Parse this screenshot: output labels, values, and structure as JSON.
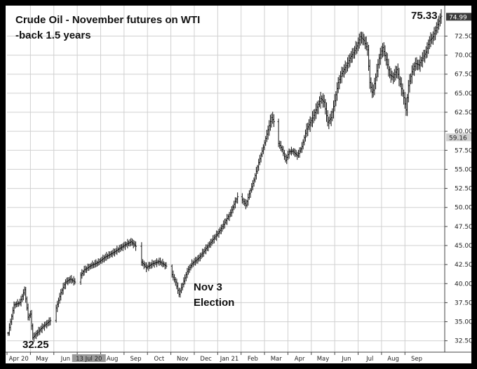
{
  "chart_data": {
    "type": "ohlc",
    "title_lines": [
      "Crude Oil - November futures on WTI",
      "-back 1.5 years"
    ],
    "ylim": [
      31.0,
      76.5
    ],
    "y_ticks": [
      "32.50",
      "35.00",
      "37.50",
      "40.00",
      "42.50",
      "45.00",
      "47.50",
      "50.00",
      "52.50",
      "55.00",
      "57.50",
      "60.00",
      "62.50",
      "65.00",
      "67.50",
      "70.00",
      "72.50"
    ],
    "x_ticks": [
      "Apr 20",
      "May",
      "Jun",
      "13 Jul 20",
      "Aug",
      "Sep",
      "Oct",
      "Nov",
      "Dec",
      "Jan 21",
      "Feb",
      "Mar",
      "Apr",
      "May",
      "Jun",
      "Jul",
      "Aug",
      "Sep"
    ],
    "x_tick_positions": [
      0.5,
      1.5,
      2.5,
      3.5,
      4.5,
      5.5,
      6.5,
      7.5,
      8.5,
      9.5,
      10.5,
      11.5,
      12.5,
      13.5,
      14.5,
      15.5,
      16.5,
      17.5
    ],
    "x_highlight_tick": "13 Jul 20",
    "x_range": [
      0,
      18.7
    ],
    "price_boxes": [
      {
        "label": "74.99",
        "value": 74.99,
        "style": "dark"
      },
      {
        "label": "59.16",
        "value": 59.16,
        "style": "light"
      }
    ],
    "series_path": [
      [
        0.05,
        33.5
      ],
      [
        0.3,
        37.2
      ],
      [
        0.55,
        37.5
      ],
      [
        0.75,
        39.2
      ],
      [
        0.9,
        35.6
      ],
      [
        1.0,
        36.0
      ],
      [
        1.1,
        32.9
      ],
      [
        1.3,
        33.6
      ],
      [
        1.55,
        34.4
      ],
      [
        1.75,
        34.9
      ],
      [
        1.9,
        35.3
      ],
      [
        2.1,
        36.8
      ],
      [
        2.3,
        38.8
      ],
      [
        2.5,
        40.2
      ],
      [
        2.7,
        40.6
      ],
      [
        2.9,
        40.2
      ],
      [
        3.1,
        40.9
      ],
      [
        3.3,
        41.8
      ],
      [
        3.6,
        42.4
      ],
      [
        3.9,
        42.8
      ],
      [
        4.2,
        43.5
      ],
      [
        4.5,
        44.0
      ],
      [
        4.8,
        44.6
      ],
      [
        5.05,
        45.1
      ],
      [
        5.3,
        45.5
      ],
      [
        5.5,
        44.9
      ],
      [
        5.7,
        43.0
      ],
      [
        5.95,
        42.1
      ],
      [
        6.2,
        42.6
      ],
      [
        6.5,
        42.9
      ],
      [
        6.8,
        42.3
      ],
      [
        7.0,
        41.5
      ],
      [
        7.2,
        40.2
      ],
      [
        7.35,
        38.6
      ],
      [
        7.5,
        39.9
      ],
      [
        7.7,
        41.6
      ],
      [
        7.9,
        42.6
      ],
      [
        8.2,
        43.4
      ],
      [
        8.5,
        44.6
      ],
      [
        8.8,
        45.8
      ],
      [
        9.1,
        47.0
      ],
      [
        9.35,
        48.3
      ],
      [
        9.55,
        49.3
      ],
      [
        9.75,
        50.8
      ],
      [
        9.9,
        51.7
      ],
      [
        10.05,
        51.0
      ],
      [
        10.2,
        50.3
      ],
      [
        10.35,
        51.8
      ],
      [
        10.55,
        53.6
      ],
      [
        10.75,
        55.9
      ],
      [
        10.95,
        57.9
      ],
      [
        11.15,
        60.2
      ],
      [
        11.3,
        61.8
      ],
      [
        11.45,
        61.0
      ],
      [
        11.6,
        58.4
      ],
      [
        11.75,
        57.6
      ],
      [
        11.9,
        56.2
      ],
      [
        12.05,
        57.3
      ],
      [
        12.2,
        57.4
      ],
      [
        12.4,
        56.8
      ],
      [
        12.6,
        58.0
      ],
      [
        12.8,
        60.3
      ],
      [
        13.0,
        61.4
      ],
      [
        13.2,
        62.8
      ],
      [
        13.4,
        64.3
      ],
      [
        13.55,
        63.8
      ],
      [
        13.7,
        61.2
      ],
      [
        13.85,
        61.8
      ],
      [
        14.0,
        64.0
      ],
      [
        14.15,
        66.4
      ],
      [
        14.3,
        67.6
      ],
      [
        14.5,
        68.6
      ],
      [
        14.65,
        69.6
      ],
      [
        14.8,
        70.3
      ],
      [
        14.95,
        71.2
      ],
      [
        15.1,
        72.4
      ],
      [
        15.25,
        71.9
      ],
      [
        15.4,
        70.7
      ],
      [
        15.5,
        66.4
      ],
      [
        15.62,
        64.9
      ],
      [
        15.75,
        67.1
      ],
      [
        15.9,
        69.6
      ],
      [
        16.05,
        71.0
      ],
      [
        16.2,
        69.4
      ],
      [
        16.35,
        67.4
      ],
      [
        16.5,
        67.1
      ],
      [
        16.65,
        68.1
      ],
      [
        16.8,
        66.2
      ],
      [
        16.95,
        64.4
      ],
      [
        17.05,
        62.8
      ],
      [
        17.15,
        66.0
      ],
      [
        17.3,
        67.8
      ],
      [
        17.45,
        68.9
      ],
      [
        17.6,
        68.7
      ],
      [
        17.75,
        69.6
      ],
      [
        17.9,
        70.4
      ],
      [
        18.05,
        71.9
      ],
      [
        18.2,
        72.4
      ],
      [
        18.35,
        73.6
      ],
      [
        18.5,
        74.9
      ],
      [
        18.6,
        75.3
      ]
    ],
    "gaps": [
      [
        1.9,
        2.1
      ],
      [
        2.9,
        3.1
      ],
      [
        5.5,
        5.7
      ],
      [
        6.8,
        7.0
      ],
      [
        9.9,
        10.05
      ],
      [
        11.45,
        11.6
      ]
    ],
    "annotations": [
      {
        "id": "low",
        "text": "32.25"
      },
      {
        "id": "high",
        "text": "75.33"
      },
      {
        "id": "nov3",
        "lines": [
          "Nov 3",
          "Election"
        ]
      }
    ]
  }
}
